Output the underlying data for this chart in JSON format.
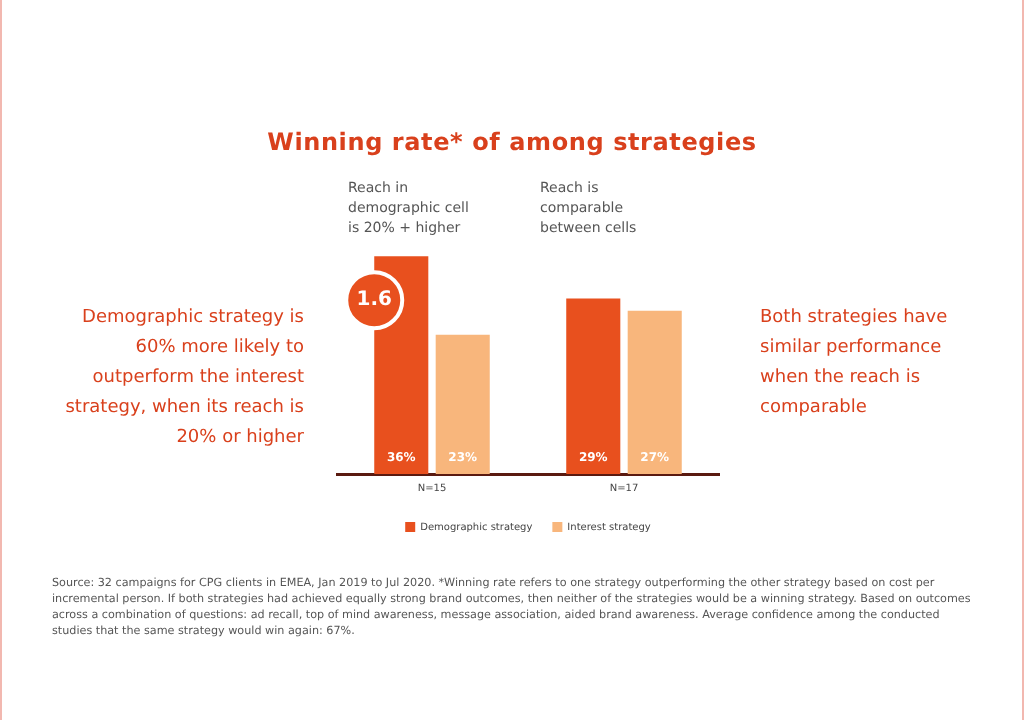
{
  "chart_data": {
    "type": "bar",
    "title": "Winning rate* of among strategies",
    "categories": [
      "N=15",
      "N=17"
    ],
    "series": [
      {
        "name": "Demographic strategy",
        "color": "#e8501e",
        "values": [
          36,
          29
        ],
        "value_labels": [
          "36%",
          "29%"
        ]
      },
      {
        "name": "Interest strategy",
        "color": "#f8b67c",
        "values": [
          23,
          27
        ],
        "value_labels": [
          "23%",
          "27%"
        ]
      }
    ],
    "legend": "bottom",
    "annotations": [
      "Demographic strategy is 60% more likely to outperform the interest strategy, when its reach is 20% or higher",
      "Both strategies have similar performance when the reach is comparable",
      "Source: 32 campaigns for CPG clients in EMEA, Jan 2019 to Jul 2020. *Winning rate refers to one strategy outperforming the other strategy based on cost per incremental person. If both strategies had achieved equally strong brand outcomes, then neither of the strategies would be a winning strategy.  Based on outcomes across a combination of questions: ad recall, top of mind awareness, message association, aided brand awareness. Average confidence among the conducted studies that the same strategy would win again: 67%.",
      "Reach in demographic cell is 20% + higher",
      "Reach is comparable between cells",
      {
        "text": "1.6",
        "x": "N=15",
        "y": 36
      }
    ]
  }
}
